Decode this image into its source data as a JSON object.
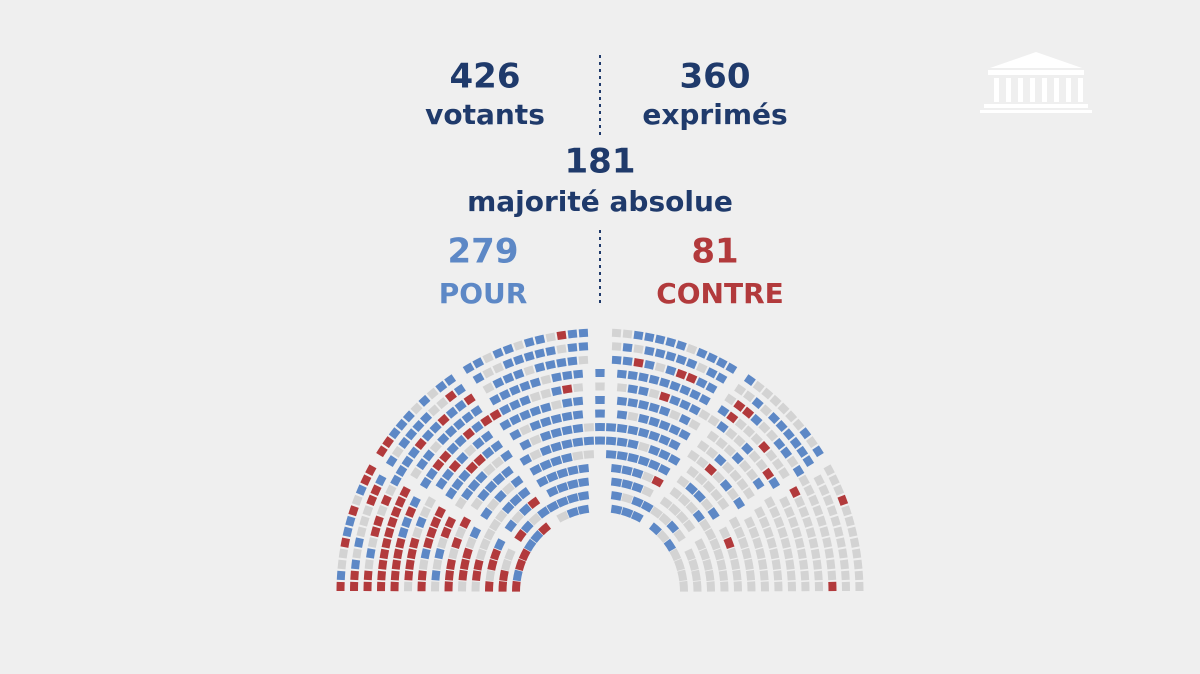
{
  "votants": {
    "value": "426",
    "label": "votants"
  },
  "exprimes": {
    "value": "360",
    "label": "exprimés"
  },
  "majorite": {
    "value": "181",
    "label": "majorité absolue"
  },
  "pour": {
    "value": "279",
    "label": "POUR"
  },
  "contre": {
    "value": "81",
    "label": "CONTRE"
  }
}
